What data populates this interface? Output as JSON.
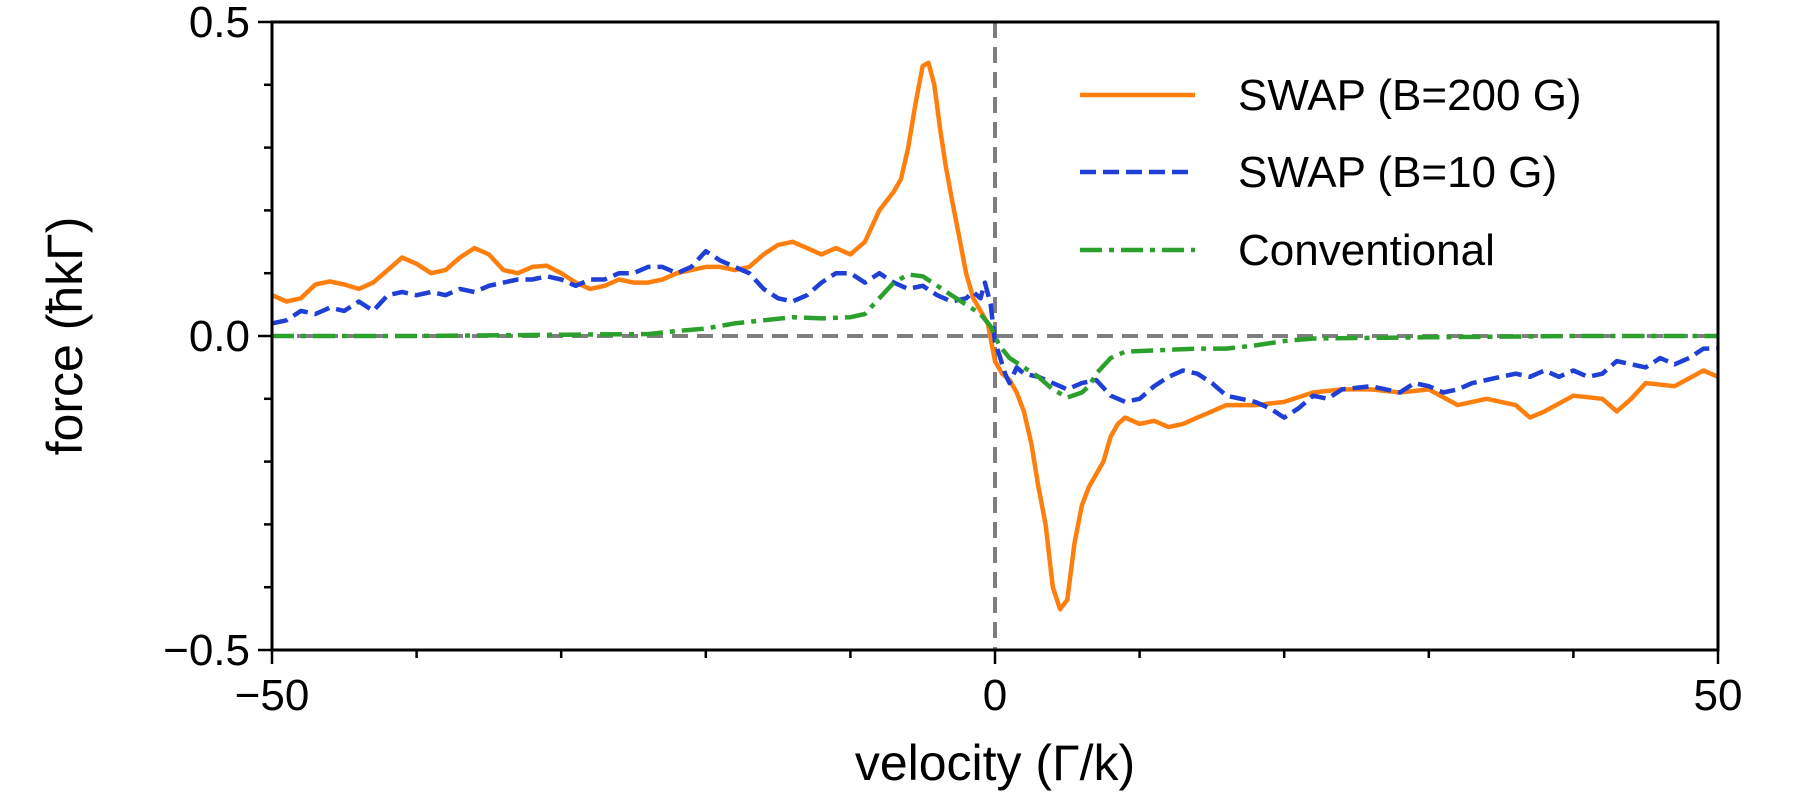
{
  "chart_data": {
    "type": "line",
    "title": "",
    "xlabel": "velocity (Γ/k)",
    "ylabel": "force (ħkΓ)",
    "xlim": [
      -50,
      50
    ],
    "ylim": [
      -0.5,
      0.5
    ],
    "xticks": [
      -50,
      0,
      50
    ],
    "xtick_labels": [
      "−50",
      "0",
      "50"
    ],
    "yticks": [
      -0.5,
      0.0,
      0.5
    ],
    "ytick_labels": [
      "−0.5",
      "0.0",
      "0.5"
    ],
    "x_minor_step": 10,
    "y_minor_step": 0.1,
    "reference_lines": {
      "x": 0,
      "y": 0,
      "color": "#7f7f7f"
    },
    "legend_position": "top-right",
    "series": [
      {
        "name": "SWAP (B=200 G)",
        "color": "#ff7f0e",
        "dash": "solid",
        "points": [
          [
            -50,
            0.065
          ],
          [
            -49,
            0.055
          ],
          [
            -48,
            0.06
          ],
          [
            -47,
            0.082
          ],
          [
            -46,
            0.087
          ],
          [
            -45,
            0.082
          ],
          [
            -44,
            0.075
          ],
          [
            -43,
            0.085
          ],
          [
            -42,
            0.105
          ],
          [
            -41,
            0.125
          ],
          [
            -40,
            0.115
          ],
          [
            -39,
            0.1
          ],
          [
            -38,
            0.105
          ],
          [
            -37,
            0.125
          ],
          [
            -36,
            0.14
          ],
          [
            -35,
            0.13
          ],
          [
            -34,
            0.105
          ],
          [
            -33,
            0.1
          ],
          [
            -32,
            0.11
          ],
          [
            -31,
            0.112
          ],
          [
            -30,
            0.1
          ],
          [
            -29,
            0.085
          ],
          [
            -28,
            0.075
          ],
          [
            -27,
            0.08
          ],
          [
            -26,
            0.09
          ],
          [
            -25,
            0.085
          ],
          [
            -24,
            0.085
          ],
          [
            -23,
            0.09
          ],
          [
            -22,
            0.1
          ],
          [
            -21,
            0.105
          ],
          [
            -20,
            0.11
          ],
          [
            -19,
            0.11
          ],
          [
            -18,
            0.105
          ],
          [
            -17,
            0.11
          ],
          [
            -16,
            0.13
          ],
          [
            -15,
            0.145
          ],
          [
            -14,
            0.15
          ],
          [
            -13,
            0.14
          ],
          [
            -12,
            0.13
          ],
          [
            -11,
            0.14
          ],
          [
            -10,
            0.13
          ],
          [
            -9,
            0.15
          ],
          [
            -8,
            0.2
          ],
          [
            -7,
            0.23
          ],
          [
            -6.5,
            0.25
          ],
          [
            -6,
            0.3
          ],
          [
            -5.5,
            0.37
          ],
          [
            -5,
            0.43
          ],
          [
            -4.6,
            0.435
          ],
          [
            -4.2,
            0.4
          ],
          [
            -3.8,
            0.33
          ],
          [
            -3.4,
            0.27
          ],
          [
            -3,
            0.22
          ],
          [
            -2.5,
            0.16
          ],
          [
            -2,
            0.1
          ],
          [
            -1.5,
            0.06
          ],
          [
            -1,
            0.04
          ],
          [
            -0.5,
            0.02
          ],
          [
            0,
            -0.04
          ],
          [
            0.5,
            -0.06
          ],
          [
            1,
            -0.07
          ],
          [
            1.5,
            -0.09
          ],
          [
            2,
            -0.12
          ],
          [
            2.5,
            -0.17
          ],
          [
            3,
            -0.24
          ],
          [
            3.5,
            -0.3
          ],
          [
            4,
            -0.4
          ],
          [
            4.5,
            -0.435
          ],
          [
            5,
            -0.42
          ],
          [
            5.5,
            -0.33
          ],
          [
            6,
            -0.27
          ],
          [
            6.5,
            -0.24
          ],
          [
            7,
            -0.22
          ],
          [
            7.5,
            -0.2
          ],
          [
            8,
            -0.16
          ],
          [
            8.5,
            -0.14
          ],
          [
            9,
            -0.13
          ],
          [
            10,
            -0.14
          ],
          [
            11,
            -0.135
          ],
          [
            12,
            -0.145
          ],
          [
            13,
            -0.14
          ],
          [
            14,
            -0.13
          ],
          [
            15,
            -0.12
          ],
          [
            16,
            -0.11
          ],
          [
            18,
            -0.11
          ],
          [
            20,
            -0.105
          ],
          [
            22,
            -0.09
          ],
          [
            24,
            -0.085
          ],
          [
            26,
            -0.085
          ],
          [
            28,
            -0.09
          ],
          [
            30,
            -0.085
          ],
          [
            32,
            -0.11
          ],
          [
            34,
            -0.1
          ],
          [
            36,
            -0.11
          ],
          [
            37,
            -0.13
          ],
          [
            38,
            -0.12
          ],
          [
            40,
            -0.095
          ],
          [
            42,
            -0.1
          ],
          [
            43,
            -0.12
          ],
          [
            44,
            -0.1
          ],
          [
            45,
            -0.075
          ],
          [
            47,
            -0.08
          ],
          [
            49,
            -0.055
          ],
          [
            50,
            -0.065
          ]
        ]
      },
      {
        "name": "SWAP (B=10 G)",
        "color": "#1f3fd6",
        "dash": "dashed",
        "points": [
          [
            -50,
            0.02
          ],
          [
            -49,
            0.025
          ],
          [
            -48,
            0.04
          ],
          [
            -47,
            0.035
          ],
          [
            -46,
            0.045
          ],
          [
            -45,
            0.04
          ],
          [
            -44,
            0.055
          ],
          [
            -43,
            0.04
          ],
          [
            -42,
            0.065
          ],
          [
            -41,
            0.07
          ],
          [
            -40,
            0.065
          ],
          [
            -39,
            0.07
          ],
          [
            -38,
            0.065
          ],
          [
            -37,
            0.075
          ],
          [
            -36,
            0.07
          ],
          [
            -35,
            0.08
          ],
          [
            -34,
            0.085
          ],
          [
            -33,
            0.09
          ],
          [
            -32,
            0.09
          ],
          [
            -31,
            0.095
          ],
          [
            -30,
            0.09
          ],
          [
            -29,
            0.08
          ],
          [
            -28,
            0.09
          ],
          [
            -27,
            0.09
          ],
          [
            -26,
            0.1
          ],
          [
            -25,
            0.1
          ],
          [
            -24,
            0.11
          ],
          [
            -23,
            0.11
          ],
          [
            -22,
            0.1
          ],
          [
            -21,
            0.11
          ],
          [
            -20,
            0.135
          ],
          [
            -19,
            0.12
          ],
          [
            -18,
            0.11
          ],
          [
            -17,
            0.1
          ],
          [
            -16,
            0.075
          ],
          [
            -15,
            0.06
          ],
          [
            -14,
            0.055
          ],
          [
            -13,
            0.065
          ],
          [
            -12,
            0.085
          ],
          [
            -11,
            0.1
          ],
          [
            -10,
            0.1
          ],
          [
            -9,
            0.085
          ],
          [
            -8,
            0.1
          ],
          [
            -7,
            0.085
          ],
          [
            -6,
            0.075
          ],
          [
            -5,
            0.08
          ],
          [
            -4,
            0.065
          ],
          [
            -3,
            0.055
          ],
          [
            -2,
            0.06
          ],
          [
            -1.5,
            0.07
          ],
          [
            -1,
            0.06
          ],
          [
            -0.7,
            0.085
          ],
          [
            -0.3,
            0.05
          ],
          [
            0,
            -0.01
          ],
          [
            0.3,
            -0.03
          ],
          [
            0.7,
            -0.06
          ],
          [
            1,
            -0.075
          ],
          [
            1.5,
            -0.05
          ],
          [
            2,
            -0.06
          ],
          [
            3,
            -0.065
          ],
          [
            4,
            -0.075
          ],
          [
            5,
            -0.085
          ],
          [
            6,
            -0.075
          ],
          [
            7,
            -0.07
          ],
          [
            8,
            -0.095
          ],
          [
            9,
            -0.105
          ],
          [
            10,
            -0.1
          ],
          [
            11,
            -0.08
          ],
          [
            12,
            -0.065
          ],
          [
            13,
            -0.055
          ],
          [
            14,
            -0.06
          ],
          [
            15,
            -0.075
          ],
          [
            16,
            -0.095
          ],
          [
            17,
            -0.1
          ],
          [
            18,
            -0.105
          ],
          [
            19,
            -0.115
          ],
          [
            20,
            -0.13
          ],
          [
            21,
            -0.115
          ],
          [
            22,
            -0.095
          ],
          [
            23,
            -0.1
          ],
          [
            24,
            -0.085
          ],
          [
            26,
            -0.08
          ],
          [
            28,
            -0.09
          ],
          [
            29,
            -0.075
          ],
          [
            30,
            -0.08
          ],
          [
            31,
            -0.09
          ],
          [
            32,
            -0.085
          ],
          [
            33,
            -0.075
          ],
          [
            34,
            -0.07
          ],
          [
            35,
            -0.065
          ],
          [
            36,
            -0.06
          ],
          [
            37,
            -0.065
          ],
          [
            38,
            -0.055
          ],
          [
            39,
            -0.065
          ],
          [
            40,
            -0.055
          ],
          [
            41,
            -0.065
          ],
          [
            42,
            -0.06
          ],
          [
            43,
            -0.04
          ],
          [
            44,
            -0.045
          ],
          [
            45,
            -0.05
          ],
          [
            46,
            -0.035
          ],
          [
            47,
            -0.045
          ],
          [
            48,
            -0.035
          ],
          [
            49,
            -0.02
          ],
          [
            50,
            -0.02
          ]
        ]
      },
      {
        "name": "Conventional",
        "color": "#2ca02c",
        "dash": "dashdot",
        "points": [
          [
            -50,
            0.0
          ],
          [
            -40,
            0.0
          ],
          [
            -30,
            0.002
          ],
          [
            -24,
            0.003
          ],
          [
            -22,
            0.008
          ],
          [
            -20,
            0.012
          ],
          [
            -18,
            0.02
          ],
          [
            -16,
            0.025
          ],
          [
            -14,
            0.03
          ],
          [
            -12,
            0.028
          ],
          [
            -10,
            0.03
          ],
          [
            -9,
            0.035
          ],
          [
            -8,
            0.06
          ],
          [
            -7,
            0.085
          ],
          [
            -6,
            0.098
          ],
          [
            -5,
            0.095
          ],
          [
            -4,
            0.08
          ],
          [
            -3,
            0.065
          ],
          [
            -2,
            0.05
          ],
          [
            -1,
            0.035
          ],
          [
            -0.3,
            0.015
          ],
          [
            0,
            0.0
          ],
          [
            0.3,
            -0.015
          ],
          [
            1,
            -0.035
          ],
          [
            2,
            -0.05
          ],
          [
            3,
            -0.065
          ],
          [
            4,
            -0.085
          ],
          [
            5,
            -0.098
          ],
          [
            6,
            -0.09
          ],
          [
            6.5,
            -0.08
          ],
          [
            7,
            -0.06
          ],
          [
            8,
            -0.035
          ],
          [
            9,
            -0.025
          ],
          [
            12,
            -0.022
          ],
          [
            14,
            -0.02
          ],
          [
            16,
            -0.02
          ],
          [
            18,
            -0.015
          ],
          [
            20,
            -0.008
          ],
          [
            22,
            -0.004
          ],
          [
            30,
            -0.002
          ],
          [
            40,
            0.0
          ],
          [
            50,
            0.0
          ]
        ]
      }
    ]
  }
}
